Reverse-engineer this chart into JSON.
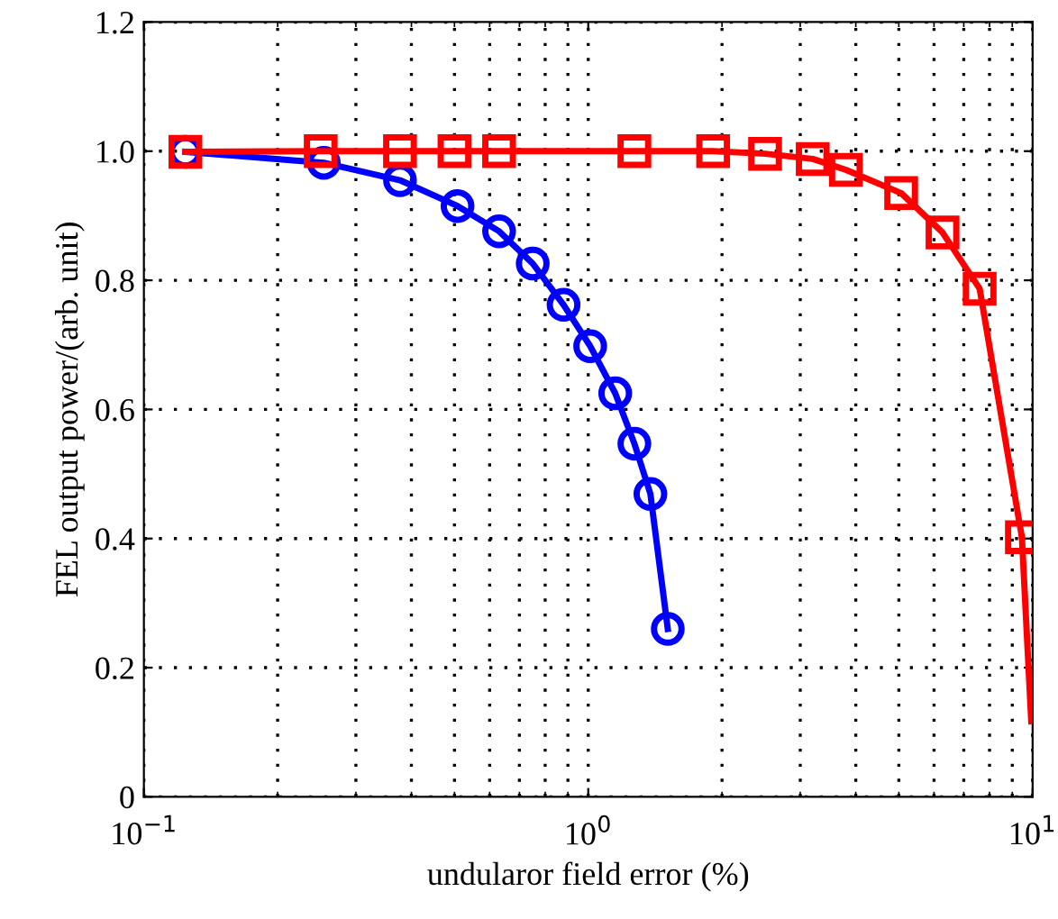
{
  "chart_data": {
    "type": "line",
    "xlabel": "undularor field error (%)",
    "ylabel": "FEL output power/(arb. unit)",
    "log": "x",
    "grid": true,
    "line_style": "solid",
    "xlim": [
      0.1,
      10
    ],
    "xticks": [
      {
        "value": 0.1,
        "label": "10$^{−1}$"
      },
      {
        "value": 1,
        "label": "10$^{0}$"
      },
      {
        "value": 10,
        "label": "10$^{1}$"
      }
    ],
    "ylim": [
      0,
      1.2
    ],
    "yticks": [
      0,
      0.2,
      0.4,
      0.6,
      0.8,
      {
        "value": 1.0,
        "label": "1.0"
      },
      1.2
    ],
    "series": [
      {
        "color": "#0000ff",
        "marker": "circle",
        "x": [
          0.124,
          0.254,
          0.377,
          0.508,
          0.63,
          0.75,
          0.88,
          1.01,
          1.15,
          1.27,
          1.38,
          1.51
        ],
        "values": [
          0.999,
          0.982,
          0.955,
          0.915,
          0.876,
          0.826,
          0.762,
          0.698,
          0.625,
          0.547,
          0.469,
          0.26
        ]
      },
      {
        "color": "#ff0000",
        "marker": "square",
        "x": [
          0.124,
          0.25,
          0.377,
          0.5,
          0.63,
          1.27,
          1.91,
          2.5,
          3.2,
          3.8,
          5.06,
          6.27,
          7.6,
          9.46
        ],
        "values": [
          0.999,
          1.0,
          1.0,
          1.0,
          1.0,
          1.0,
          1.0,
          0.996,
          0.988,
          0.971,
          0.935,
          0.874,
          0.787,
          0.402
        ]
      },
      {
        "color": "#ff0000",
        "marker": "none",
        "x": [
          9.46,
          9.93
        ],
        "values": [
          0.402,
          0.117
        ]
      }
    ]
  }
}
